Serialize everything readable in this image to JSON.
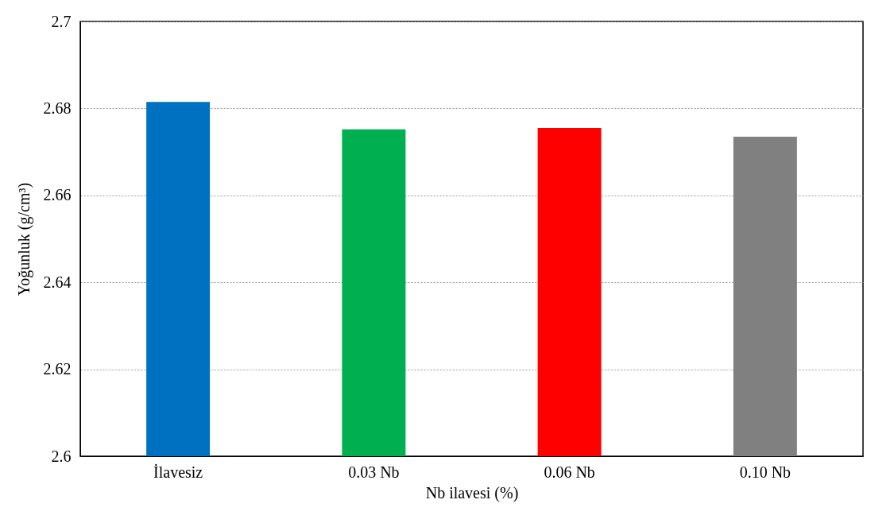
{
  "chart_data": {
    "type": "bar",
    "xlabel": "Nb ilavesi (%)",
    "ylabel": "Yoğunluk (g/cm³)",
    "categories": [
      "İlavesiz",
      "0.03 Nb",
      "0.06 Nb",
      "0.10 Nb"
    ],
    "values": [
      2.6815,
      2.6752,
      2.6755,
      2.6735
    ],
    "colors": [
      "#0070c0",
      "#00b050",
      "#ff0000",
      "#808080"
    ],
    "ylim": [
      2.6,
      2.7
    ],
    "yticks": [
      2.6,
      2.62,
      2.64,
      2.66,
      2.68,
      2.7
    ],
    "grid": "y"
  }
}
